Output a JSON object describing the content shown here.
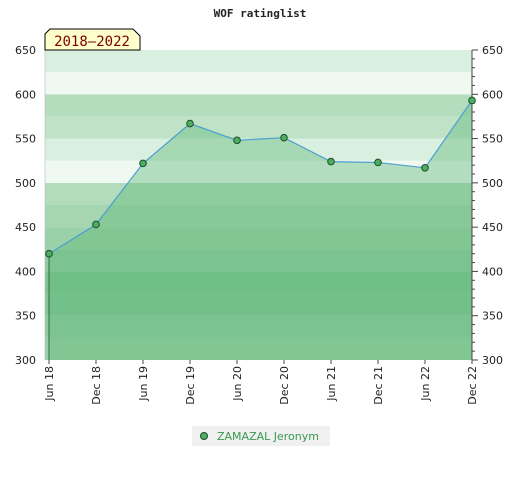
{
  "chart_data": {
    "type": "area",
    "title": "WOF ratinglist",
    "period_badge": "2018–2022",
    "categories": [
      "Jun 18",
      "Dec 18",
      "Jun 19",
      "Dec 19",
      "Jun 20",
      "Dec 20",
      "Jun 21",
      "Dec 21",
      "Jun 22",
      "Dec 22"
    ],
    "series": [
      {
        "name": "ZAMAZAL Jeronym",
        "values": [
          420,
          453,
          522,
          567,
          548,
          551,
          524,
          523,
          517,
          593
        ]
      }
    ],
    "ylim": [
      300,
      650
    ],
    "yticks": [
      300,
      350,
      400,
      450,
      500,
      550,
      600,
      650
    ],
    "grid": true,
    "legend_position": "bottom",
    "colors": {
      "line": "#4a9fd0",
      "fill": "#5fb87a",
      "marker": "#4caf60",
      "legend_text": "#3a9a4e",
      "badge_bg": "#ffffcc"
    }
  }
}
